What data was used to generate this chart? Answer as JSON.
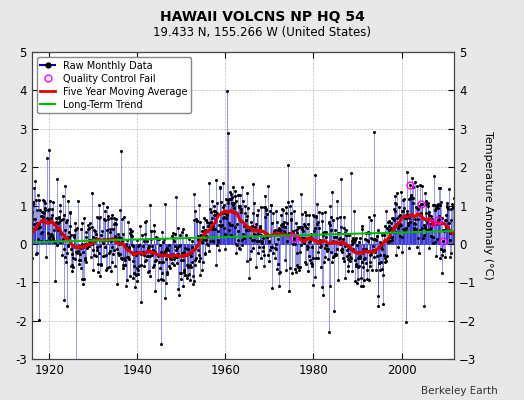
{
  "title": "HAWAII VOLCNS NP HQ 54",
  "subtitle": "19.433 N, 155.266 W (United States)",
  "ylabel": "Temperature Anomaly (°C)",
  "attribution": "Berkeley Earth",
  "year_start": 1916,
  "year_end": 2012,
  "ylim": [
    -3,
    5
  ],
  "yticks": [
    -3,
    -2,
    -1,
    0,
    1,
    2,
    3,
    4,
    5
  ],
  "xticks": [
    1920,
    1940,
    1960,
    1980,
    2000
  ],
  "raw_color": "#0000cc",
  "moving_avg_color": "#dd0000",
  "trend_color": "#00bb00",
  "qc_fail_color": "#ff00ff",
  "background_color": "#e8e8e8",
  "plot_bg_color": "#ffffff",
  "grid_color": "#bbbbbb",
  "seed": 17
}
